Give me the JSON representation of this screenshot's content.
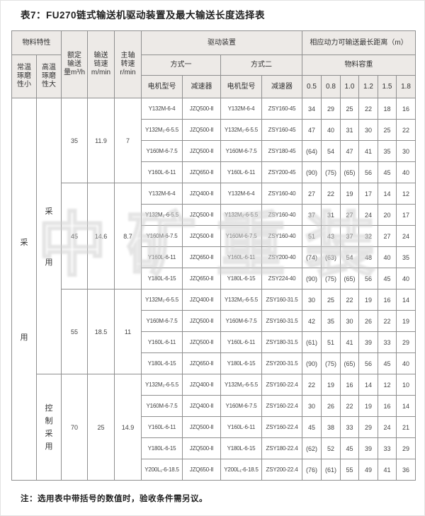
{
  "page": {
    "title": "表7：FU270链式输送机驱动装置及最大输送长度选择表",
    "note": "注：选用表中带括号的数值时，验收条件需另议。",
    "watermark": "中矿重装"
  },
  "table": {
    "header": {
      "material_props": "物料特性",
      "col_normal_temp": "常温\n琢磨\n性小",
      "col_high_temp": "高温\n琢磨\n性大",
      "col_capacity": "额定\n输送\n量m³/h",
      "col_chain_speed": "输送\n链速\nm/min",
      "col_shaft_speed": "主轴\n转速\nr/min",
      "drive_device": "驱动装置",
      "mode1": "方式一",
      "mode2": "方式二",
      "motor_model": "电机型号",
      "reducer": "减速器",
      "max_distance": "相应动力可输送最长距离（m）",
      "bulk_density": "物料容重",
      "densities": [
        "0.5",
        "0.8",
        "1.0",
        "1.2",
        "1.5",
        "1.8"
      ]
    },
    "usage": {
      "normal_temp_chars": [
        "采",
        "用"
      ],
      "high_temp_main_chars": [
        "采",
        "用"
      ],
      "high_temp_main_rowspan": 13,
      "high_temp_control_chars": [
        "控",
        "制",
        "采",
        "用"
      ],
      "high_temp_control_rowspan": 5
    },
    "groups": [
      {
        "capacity": "35",
        "chain_speed": "11.9",
        "shaft_speed": "7",
        "rows": [
          {
            "m1_motor": "Y132M-6-4",
            "m1_reducer": "JZQ500-Ⅱ",
            "m2_motor": "Y132M-6-4",
            "m2_reducer": "ZSY160-45",
            "d": [
              "34",
              "29",
              "25",
              "22",
              "18",
              "16"
            ]
          },
          {
            "m1_motor": "Y132M₂-6-5.5",
            "m1_reducer": "JZQ500-Ⅱ",
            "m2_motor": "Y132M₂-6-5.5",
            "m2_reducer": "ZSY160-45",
            "d": [
              "47",
              "40",
              "31",
              "30",
              "25",
              "22"
            ]
          },
          {
            "m1_motor": "Y160M-6-7.5",
            "m1_reducer": "JZQ500-Ⅱ",
            "m2_motor": "Y160M-6-7.5",
            "m2_reducer": "ZSY180-45",
            "d": [
              "(64)",
              "54",
              "47",
              "41",
              "35",
              "30"
            ]
          },
          {
            "m1_motor": "Y160L-6-11",
            "m1_reducer": "JZQ650-Ⅱ",
            "m2_motor": "Y160L-6-11",
            "m2_reducer": "ZSY200-45",
            "d": [
              "(90)",
              "(75)",
              "(65)",
              "56",
              "45",
              "40"
            ]
          }
        ]
      },
      {
        "capacity": "45",
        "chain_speed": "14.6",
        "shaft_speed": "8.7",
        "rows": [
          {
            "m1_motor": "Y132M-6-4",
            "m1_reducer": "JZQ400-Ⅱ",
            "m2_motor": "Y132M-6-4",
            "m2_reducer": "ZSY160-40",
            "d": [
              "27",
              "22",
              "19",
              "17",
              "14",
              "12"
            ]
          },
          {
            "m1_motor": "Y132M₂-6-5.5",
            "m1_reducer": "JZQ500-Ⅱ",
            "m2_motor": "Y132M₂-6-5.5",
            "m2_reducer": "ZSY160-40",
            "d": [
              "37",
              "31",
              "27",
              "24",
              "20",
              "17"
            ]
          },
          {
            "m1_motor": "Y160M-6-7.5",
            "m1_reducer": "JZQ500-Ⅱ",
            "m2_motor": "Y160M-6-7.5",
            "m2_reducer": "ZSY160-40",
            "d": [
              "51",
              "43",
              "37",
              "32",
              "27",
              "24"
            ]
          },
          {
            "m1_motor": "Y160L-6-11",
            "m1_reducer": "JZQ650-Ⅱ",
            "m2_motor": "Y160L-6-11",
            "m2_reducer": "ZSY200-40",
            "d": [
              "(74)",
              "(63)",
              "54",
              "48",
              "40",
              "35"
            ]
          },
          {
            "m1_motor": "Y180L-6-15",
            "m1_reducer": "JZQ650-Ⅱ",
            "m2_motor": "Y180L-6-15",
            "m2_reducer": "ZSY224-40",
            "d": [
              "(90)",
              "(75)",
              "(65)",
              "56",
              "45",
              "40"
            ]
          }
        ]
      },
      {
        "capacity": "55",
        "chain_speed": "18.5",
        "shaft_speed": "11",
        "rows": [
          {
            "m1_motor": "Y132M₂-6-5.5",
            "m1_reducer": "JZQ400-Ⅱ",
            "m2_motor": "Y132M₂-6-5.5",
            "m2_reducer": "ZSY160-31.5",
            "d": [
              "30",
              "25",
              "22",
              "19",
              "16",
              "14"
            ]
          },
          {
            "m1_motor": "Y160M-6-7.5",
            "m1_reducer": "JZQ500-Ⅱ",
            "m2_motor": "Y160M-6-7.5",
            "m2_reducer": "ZSY160-31.5",
            "d": [
              "42",
              "35",
              "30",
              "26",
              "22",
              "19"
            ]
          },
          {
            "m1_motor": "Y160L-6-11",
            "m1_reducer": "JZQ500-Ⅱ",
            "m2_motor": "Y160L-6-11",
            "m2_reducer": "ZSY180-31.5",
            "d": [
              "(61)",
              "51",
              "41",
              "39",
              "33",
              "29"
            ]
          },
          {
            "m1_motor": "Y180L-6-15",
            "m1_reducer": "JZQ650-Ⅱ",
            "m2_motor": "Y180L-6-15",
            "m2_reducer": "ZSY200-31.5",
            "d": [
              "(90)",
              "(75)",
              "(65)",
              "56",
              "45",
              "40"
            ]
          }
        ]
      },
      {
        "capacity": "70",
        "chain_speed": "25",
        "shaft_speed": "14.9",
        "rows": [
          {
            "m1_motor": "Y132M₂-6-5.5",
            "m1_reducer": "JZQ400-Ⅱ",
            "m2_motor": "Y132M₂-6-5.5",
            "m2_reducer": "ZSY160-22.4",
            "d": [
              "22",
              "19",
              "16",
              "14",
              "12",
              "10"
            ]
          },
          {
            "m1_motor": "Y160M-6-7.5",
            "m1_reducer": "JZQ400-Ⅱ",
            "m2_motor": "Y160M-6-7.5",
            "m2_reducer": "ZSY160-22.4",
            "d": [
              "30",
              "26",
              "22",
              "19",
              "16",
              "14"
            ]
          },
          {
            "m1_motor": "Y160L-6-11",
            "m1_reducer": "JZQ500-Ⅱ",
            "m2_motor": "Y160L-6-11",
            "m2_reducer": "ZSY160-22.4",
            "d": [
              "45",
              "38",
              "33",
              "29",
              "24",
              "21"
            ]
          },
          {
            "m1_motor": "Y180L-6-15",
            "m1_reducer": "JZQ500-Ⅱ",
            "m2_motor": "Y180L-6-15",
            "m2_reducer": "ZSY180-22.4",
            "d": [
              "(62)",
              "52",
              "45",
              "39",
              "33",
              "29"
            ]
          },
          {
            "m1_motor": "Y200L₁-6-18.5",
            "m1_reducer": "JZQ650-Ⅱ",
            "m2_motor": "Y200L₁-6-18.5",
            "m2_reducer": "ZSY200-22.4",
            "d": [
              "(76)",
              "(61)",
              "55",
              "49",
              "41",
              "36"
            ]
          }
        ]
      }
    ]
  }
}
